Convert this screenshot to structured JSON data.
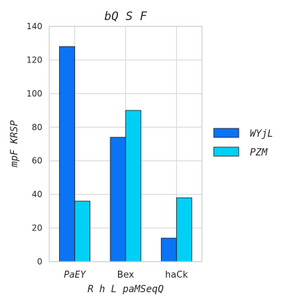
{
  "chart_data": {
    "type": "bar",
    "title": "bQ S F",
    "xlabel": "R h L paMSeqQ",
    "ylabel": "mpF KRSP",
    "categories": [
      "PaEY",
      "Bex",
      "haCk"
    ],
    "category_styles": [
      "mono",
      "sans",
      "sans"
    ],
    "ylim": [
      0,
      140
    ],
    "yticks": [
      0,
      20,
      40,
      60,
      80,
      100,
      120,
      140
    ],
    "grid": true,
    "legend_position": "right",
    "series": [
      {
        "name": "WYjL",
        "color": "#0a74f5",
        "values": [
          128,
          74,
          14
        ]
      },
      {
        "name": "PZM",
        "color": "#00d0f5",
        "values": [
          36,
          90,
          38
        ]
      }
    ]
  }
}
